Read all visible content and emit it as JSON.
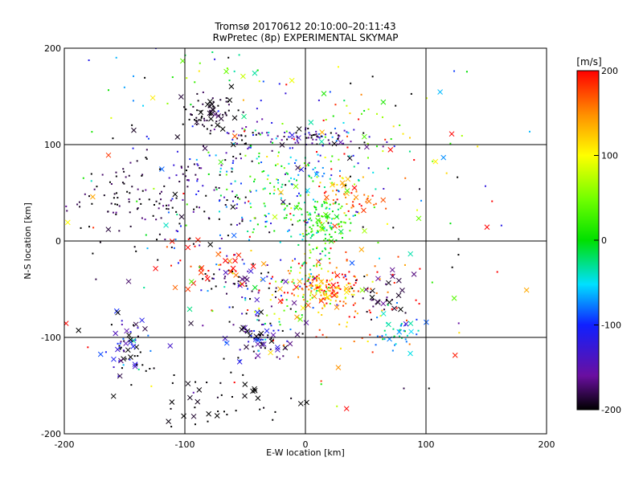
{
  "chart_data": {
    "type": "scatter",
    "title": "Tromsø 20170612 20:10:00–20:11:43",
    "subtitle": "RwPretec (8p) EXPERIMENTAL SKYMAP",
    "xlabel": "E-W location [km]",
    "ylabel": "N-S location [km]",
    "xlim": [
      -200,
      200
    ],
    "ylim": [
      -200,
      200
    ],
    "x_ticks": [
      "-200",
      "-100",
      "0",
      "100",
      "200"
    ],
    "y_ticks": [
      "-200",
      "-100",
      "0",
      "100",
      "200"
    ],
    "grid": true,
    "colorbar": {
      "label": "[m/s]",
      "range": [
        -200,
        200
      ],
      "ticks": [
        "-200",
        "-100",
        "0",
        "100",
        "200"
      ],
      "colormap": "rainbow (black-purple-blue-cyan-green-yellow-red)"
    },
    "marker_types": [
      "dot",
      "x"
    ],
    "clusters": [
      {
        "cx": -78,
        "cy": 133,
        "sx": 10,
        "sy": 9,
        "n": 70,
        "vel": -195,
        "vs": 10,
        "xfrac": 0.35
      },
      {
        "cx": 10,
        "cy": 108,
        "sx": 20,
        "sy": 5,
        "n": 70,
        "vel": -160,
        "vs": 40,
        "xfrac": 0.1
      },
      {
        "cx": -45,
        "cy": 105,
        "sx": 18,
        "sy": 8,
        "n": 40,
        "vel": -170,
        "vs": 35,
        "xfrac": 0.1
      },
      {
        "cx": -140,
        "cy": 40,
        "sx": 32,
        "sy": 28,
        "n": 110,
        "vel": -190,
        "vs": 15,
        "xfrac": 0.05
      },
      {
        "cx": -80,
        "cy": 40,
        "sx": 30,
        "sy": 30,
        "n": 90,
        "vel": -150,
        "vs": 60,
        "xfrac": 0.05
      },
      {
        "cx": -25,
        "cy": 55,
        "sx": 25,
        "sy": 25,
        "n": 120,
        "vel": -30,
        "vs": 60,
        "xfrac": 0.05
      },
      {
        "cx": 15,
        "cy": 20,
        "sx": 12,
        "sy": 12,
        "n": 110,
        "vel": 10,
        "vs": 30,
        "xfrac": 0.06
      },
      {
        "cx": 38,
        "cy": 45,
        "sx": 12,
        "sy": 8,
        "n": 45,
        "vel": 165,
        "vs": 30,
        "xfrac": 0.2
      },
      {
        "cx": 20,
        "cy": 60,
        "sx": 28,
        "sy": 25,
        "n": 70,
        "vel": 10,
        "vs": 110,
        "xfrac": 0.05
      },
      {
        "cx": 15,
        "cy": -50,
        "sx": 14,
        "sy": 8,
        "n": 150,
        "vel": 150,
        "vs": 50,
        "xfrac": 0.12
      },
      {
        "cx": 5,
        "cy": -25,
        "sx": 8,
        "sy": 20,
        "n": 60,
        "vel": 10,
        "vs": 70,
        "xfrac": 0.05
      },
      {
        "cx": 60,
        "cy": -55,
        "sx": 12,
        "sy": 10,
        "n": 35,
        "vel": -185,
        "vs": 15,
        "xfrac": 0.4
      },
      {
        "cx": 45,
        "cy": -55,
        "sx": 30,
        "sy": 30,
        "n": 60,
        "vel": 170,
        "vs": 30,
        "xfrac": 0.05
      },
      {
        "cx": 75,
        "cy": -95,
        "sx": 12,
        "sy": 12,
        "n": 40,
        "vel": -50,
        "vs": 30,
        "xfrac": 0.3
      },
      {
        "cx": -40,
        "cy": -100,
        "sx": 15,
        "sy": 14,
        "n": 80,
        "vel": -150,
        "vs": 50,
        "xfrac": 0.3
      },
      {
        "cx": -60,
        "cy": -40,
        "sx": 15,
        "sy": 10,
        "n": 40,
        "vel": -180,
        "vs": 40,
        "xfrac": 0.25
      },
      {
        "cx": -80,
        "cy": -30,
        "sx": 20,
        "sy": 15,
        "n": 30,
        "vel": 190,
        "vs": 20,
        "xfrac": 0.4
      },
      {
        "cx": -30,
        "cy": -60,
        "sx": 20,
        "sy": 20,
        "n": 50,
        "vel": 0,
        "vs": 120,
        "xfrac": 0.1
      },
      {
        "cx": -148,
        "cy": -110,
        "sx": 10,
        "sy": 15,
        "n": 60,
        "vel": -150,
        "vs": 60,
        "xfrac": 0.35
      },
      {
        "cx": -70,
        "cy": -170,
        "sx": 30,
        "sy": 20,
        "n": 45,
        "vel": -200,
        "vs": 5,
        "xfrac": 0.5
      },
      {
        "cx": -60,
        "cy": 150,
        "sx": 60,
        "sy": 30,
        "n": 60,
        "vel": -40,
        "vs": 140,
        "xfrac": 0.2
      },
      {
        "cx": 60,
        "cy": 120,
        "sx": 40,
        "sy": 25,
        "n": 40,
        "vel": 40,
        "vs": 110,
        "xfrac": 0.15
      },
      {
        "cx": 0,
        "cy": 0,
        "sx": 100,
        "sy": 100,
        "n": 180,
        "vel": 0,
        "vs": 180,
        "xfrac": 0.3
      }
    ]
  }
}
